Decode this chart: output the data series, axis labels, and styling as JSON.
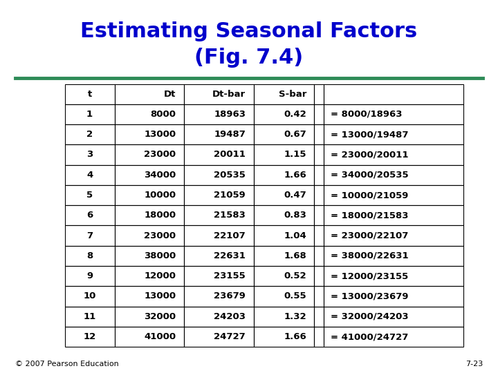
{
  "title_line1": "Estimating Seasonal Factors",
  "title_line2": "(Fig. 7.4)",
  "title_color": "#0000CC",
  "separator_color": "#2E8B57",
  "background_color": "#FFFFFF",
  "footer_left": "© 2007 Pearson Education",
  "footer_right": "7-23",
  "col_headers": [
    "t",
    "Dt",
    "Dt-bar",
    "S-bar",
    "",
    ""
  ],
  "rows": [
    [
      1,
      8000,
      18963,
      0.42,
      "= 8000/18963"
    ],
    [
      2,
      13000,
      19487,
      0.67,
      "= 13000/19487"
    ],
    [
      3,
      23000,
      20011,
      1.15,
      "= 23000/20011"
    ],
    [
      4,
      34000,
      20535,
      1.66,
      "= 34000/20535"
    ],
    [
      5,
      10000,
      21059,
      0.47,
      "= 10000/21059"
    ],
    [
      6,
      18000,
      21583,
      0.83,
      "= 18000/21583"
    ],
    [
      7,
      23000,
      22107,
      1.04,
      "= 23000/22107"
    ],
    [
      8,
      38000,
      22631,
      1.68,
      "= 38000/22631"
    ],
    [
      9,
      12000,
      23155,
      0.52,
      "= 12000/23155"
    ],
    [
      10,
      13000,
      23679,
      0.55,
      "= 13000/23679"
    ],
    [
      11,
      32000,
      24203,
      1.32,
      "= 32000/24203"
    ],
    [
      12,
      41000,
      24727,
      1.66,
      "= 41000/24727"
    ]
  ]
}
